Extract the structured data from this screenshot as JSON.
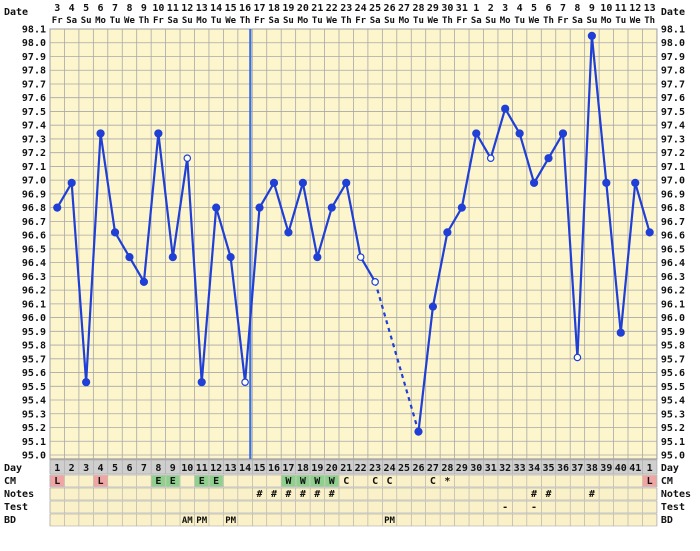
{
  "chart_data": {
    "type": "line",
    "title": "",
    "xlabel": "Day",
    "ylabel": "",
    "ylim": [
      95.0,
      98.1
    ],
    "grid": true,
    "header_label": "Date",
    "dates": [
      "3",
      "4",
      "5",
      "6",
      "7",
      "8",
      "9",
      "10",
      "11",
      "12",
      "13",
      "14",
      "15",
      "16",
      "17",
      "18",
      "19",
      "20",
      "21",
      "22",
      "23",
      "24",
      "25",
      "26",
      "27",
      "28",
      "29",
      "30",
      "31",
      "1",
      "2",
      "3",
      "4",
      "5",
      "6",
      "7",
      "8",
      "9",
      "10",
      "11",
      "12",
      "13"
    ],
    "weekdays": [
      "Fr",
      "Sa",
      "Su",
      "Mo",
      "Tu",
      "We",
      "Th",
      "Fr",
      "Sa",
      "Su",
      "Mo",
      "Tu",
      "We",
      "Th",
      "Fr",
      "Sa",
      "Su",
      "Mo",
      "Tu",
      "We",
      "Th",
      "Fr",
      "Sa",
      "Su",
      "Mo",
      "Tu",
      "We",
      "Th",
      "Fr",
      "Sa",
      "Su",
      "Mo",
      "Tu",
      "We",
      "Th",
      "Fr",
      "Sa",
      "Su",
      "Mo",
      "Tu",
      "We",
      "Th"
    ],
    "days": [
      "1",
      "2",
      "3",
      "4",
      "5",
      "6",
      "7",
      "8",
      "9",
      "10",
      "11",
      "12",
      "13",
      "14",
      "15",
      "16",
      "17",
      "18",
      "19",
      "20",
      "21",
      "22",
      "23",
      "24",
      "25",
      "26",
      "27",
      "28",
      "29",
      "30",
      "31",
      "32",
      "33",
      "34",
      "35",
      "36",
      "37",
      "38",
      "39",
      "40",
      "41",
      "1"
    ],
    "temps": [
      96.8,
      96.98,
      95.53,
      97.34,
      96.62,
      96.44,
      96.26,
      97.34,
      96.44,
      97.16,
      95.53,
      96.8,
      96.44,
      95.53,
      96.8,
      96.98,
      96.62,
      96.98,
      96.44,
      96.8,
      96.98,
      96.44,
      96.26,
      null,
      null,
      95.17,
      96.08,
      96.62,
      96.8,
      97.34,
      97.16,
      97.52,
      97.34,
      96.98,
      97.16,
      97.34,
      95.71,
      98.05,
      96.98,
      95.89,
      96.98,
      96.62
    ],
    "open_points": [
      9,
      13,
      21,
      22,
      30,
      36
    ],
    "dashed_segment": [
      22,
      25
    ],
    "coverline_after_index": 13,
    "y_ticks": [
      "98.1",
      "98.0",
      "97.9",
      "97.8",
      "97.7",
      "97.6",
      "97.5",
      "97.4",
      "97.3",
      "97.2",
      "97.1",
      "97.0",
      "96.9",
      "96.8",
      "96.7",
      "96.6",
      "96.5",
      "96.4",
      "96.3",
      "96.2",
      "96.1",
      "96.0",
      "95.9",
      "95.8",
      "95.7",
      "95.6",
      "95.5",
      "95.4",
      "95.3",
      "95.2",
      "95.1",
      "95.0"
    ],
    "rows": {
      "cm": {
        "label": "CM",
        "values": [
          "L",
          "",
          "",
          "L",
          "",
          "",
          "",
          "E",
          "E",
          "",
          "E",
          "E",
          "",
          "",
          "",
          "",
          "W",
          "W",
          "W",
          "W",
          "C",
          "",
          "C",
          "C",
          "",
          "",
          "C",
          "*",
          "",
          "",
          "",
          "",
          "",
          "",
          "",
          "",
          "",
          "",
          "",
          "",
          "",
          "L"
        ]
      },
      "notes": {
        "label": "Notes",
        "values": [
          "",
          "",
          "",
          "",
          "",
          "",
          "",
          "",
          "",
          "",
          "",
          "",
          "",
          "",
          "#",
          "#",
          "#",
          "#",
          "#",
          "#",
          "",
          "",
          "",
          "",
          "",
          "",
          "",
          "",
          "",
          "",
          "",
          "",
          "",
          "#",
          "#",
          "",
          "",
          "#",
          "",
          "",
          "",
          ""
        ]
      },
      "test": {
        "label": "Test",
        "values": [
          "",
          "",
          "",
          "",
          "",
          "",
          "",
          "",
          "",
          "",
          "",
          "",
          "",
          "",
          "",
          "",
          "",
          "",
          "",
          "",
          "",
          "",
          "",
          "",
          "",
          "",
          "",
          "",
          "",
          "",
          "",
          "-",
          "",
          "-",
          "",
          "",
          "",
          "",
          "",
          "",
          "",
          ""
        ]
      },
      "bd": {
        "label": "BD",
        "values": [
          "",
          "",
          "",
          "",
          "",
          "",
          "",
          "",
          "",
          "AM",
          "PM",
          "",
          "PM",
          "",
          "",
          "",
          "",
          "",
          "",
          "",
          "",
          "",
          "",
          "PM",
          "",
          "",
          "",
          "",
          "",
          "",
          "",
          "",
          "",
          "",
          "",
          "",
          "",
          "",
          "",
          "",
          "",
          ""
        ]
      }
    },
    "colors": {
      "line": "#1f3fd6",
      "coverline": "#3b6fe0",
      "plot_bg": "#fdf5cc",
      "grid": "#a8a8a8",
      "row_bg": "#fbf1c8",
      "day_bg": "#cfcfcf",
      "cm_L": "#f0a5a5",
      "cm_E": "#8fd08f",
      "cm_W": "#8fd08f"
    }
  }
}
